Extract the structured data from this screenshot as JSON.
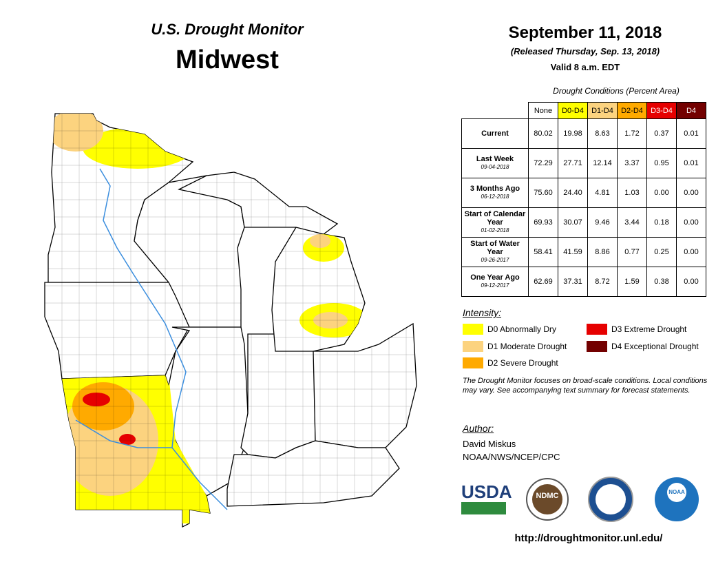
{
  "header": {
    "title": "U.S. Drought Monitor",
    "region": "Midwest",
    "date": "September 11, 2018",
    "released": "(Released Thursday, Sep. 13, 2018)",
    "valid": "Valid 8 a.m. EDT"
  },
  "table": {
    "caption": "Drought Conditions (Percent Area)",
    "columns": [
      {
        "label": "None",
        "color": "#ffffff",
        "text_color": "#000000"
      },
      {
        "label": "D0-D4",
        "color": "#ffff00",
        "text_color": "#000000"
      },
      {
        "label": "D1-D4",
        "color": "#fcd37f",
        "text_color": "#000000"
      },
      {
        "label": "D2-D4",
        "color": "#ffaa00",
        "text_color": "#000000"
      },
      {
        "label": "D3-D4",
        "color": "#e60000",
        "text_color": "#ffffff"
      },
      {
        "label": "D4",
        "color": "#730000",
        "text_color": "#ffffff"
      }
    ],
    "rows": [
      {
        "label": "Current",
        "values": [
          "80.02",
          "19.98",
          "8.63",
          "1.72",
          "0.37",
          "0.01"
        ]
      },
      {
        "label": "Last Week",
        "date": "09-04-2018",
        "values": [
          "72.29",
          "27.71",
          "12.14",
          "3.37",
          "0.95",
          "0.01"
        ]
      },
      {
        "label": "3 Months Ago",
        "date": "06-12-2018",
        "values": [
          "75.60",
          "24.40",
          "4.81",
          "1.03",
          "0.00",
          "0.00"
        ]
      },
      {
        "label": "Start of Calendar Year",
        "date": "01-02-2018",
        "values": [
          "69.93",
          "30.07",
          "9.46",
          "3.44",
          "0.18",
          "0.00"
        ]
      },
      {
        "label": "Start of Water Year",
        "date": "09-26-2017",
        "values": [
          "58.41",
          "41.59",
          "8.86",
          "0.77",
          "0.25",
          "0.00"
        ]
      },
      {
        "label": "One Year Ago",
        "date": "09-12-2017",
        "values": [
          "62.69",
          "37.31",
          "8.72",
          "1.59",
          "0.38",
          "0.00"
        ]
      }
    ]
  },
  "legend": {
    "title": "Intensity:",
    "items": [
      {
        "label": "D0 Abnormally Dry",
        "color": "#ffff00"
      },
      {
        "label": "D1 Moderate Drought",
        "color": "#fcd37f"
      },
      {
        "label": "D2 Severe Drought",
        "color": "#ffaa00"
      },
      {
        "label": "D3 Extreme Drought",
        "color": "#e60000"
      },
      {
        "label": "D4 Exceptional Drought",
        "color": "#730000"
      }
    ]
  },
  "note": "The Drought Monitor focuses on broad-scale conditions. Local conditions may vary. See accompanying text summary for forecast statements.",
  "author": {
    "label": "Author:",
    "name": "David Miskus",
    "org": "NOAA/NWS/NCEP/CPC"
  },
  "logos": [
    "USDA",
    "NDMC",
    "NOAA"
  ],
  "url": "http://droughtmonitor.unl.edu/"
}
